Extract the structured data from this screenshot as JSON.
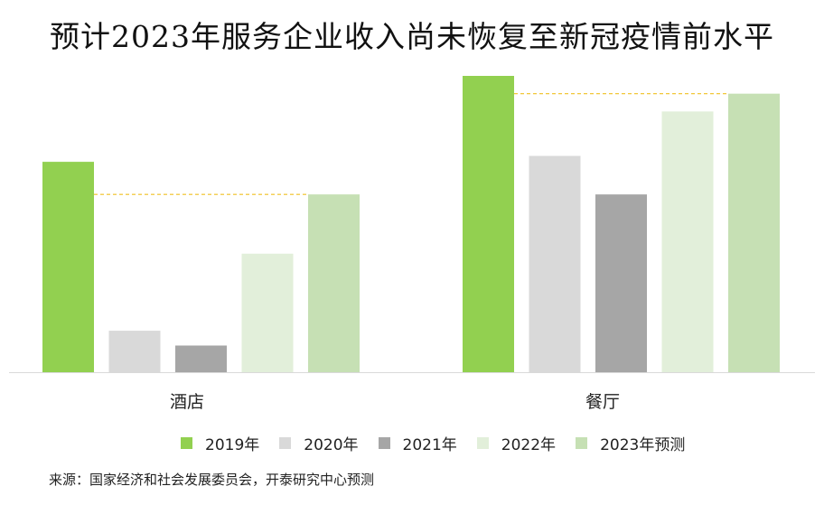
{
  "title": "预计2023年服务企业收入尚未恢复至新冠疫情前水平",
  "chart_data": {
    "type": "bar",
    "title": "预计2023年服务企业收入尚未恢复至新冠疫情前水平",
    "categories": [
      "酒店",
      "餐厅"
    ],
    "series": [
      {
        "name": "2019年",
        "color": "#92d050",
        "values": [
          71,
          100
        ]
      },
      {
        "name": "2020年",
        "color": "#d9d9d9",
        "values": [
          14,
          73
        ]
      },
      {
        "name": "2021年",
        "color": "#a6a6a6",
        "values": [
          9,
          60
        ]
      },
      {
        "name": "2022年",
        "color": "#e2efda",
        "values": [
          40,
          88
        ]
      },
      {
        "name": "2023年预测",
        "color": "#c6e0b4",
        "values": [
          60,
          94
        ]
      }
    ],
    "reference_lines": "dashed line at 2023 forecast level in each category",
    "reference_color": "#f0c020",
    "grid": false,
    "y_axis_shown": false,
    "legend_position": "bottom"
  },
  "source": "来源：国家经济和社会发展委员会，开泰研究中心预测"
}
